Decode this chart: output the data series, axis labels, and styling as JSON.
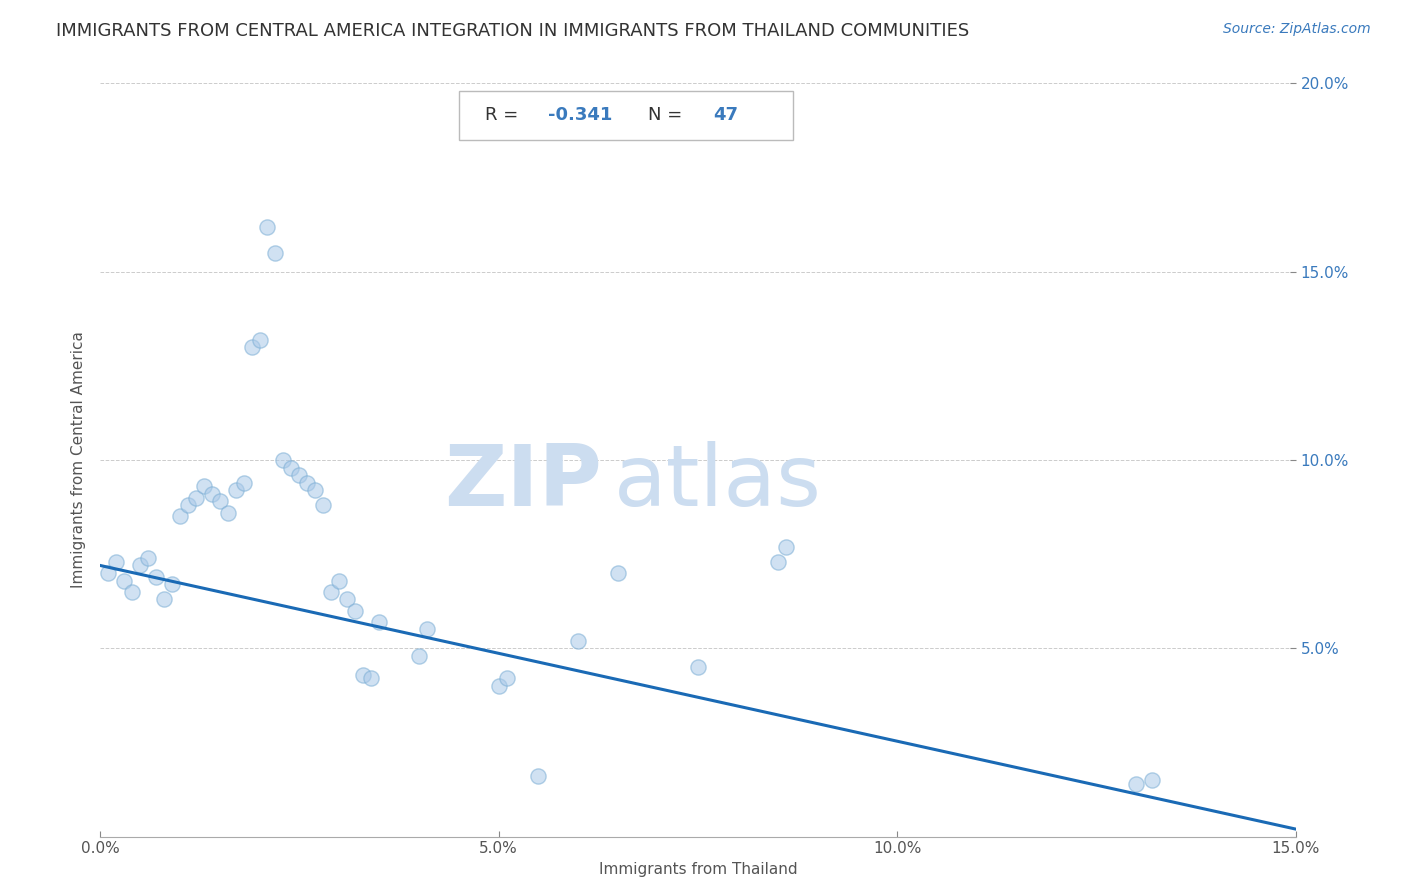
{
  "title": "IMMIGRANTS FROM CENTRAL AMERICA INTEGRATION IN IMMIGRANTS FROM THAILAND COMMUNITIES",
  "source": "Source: ZipAtlas.com",
  "xlabel": "Immigrants from Thailand",
  "ylabel": "Immigrants from Central America",
  "R": -0.341,
  "N": 47,
  "xlim": [
    0.0,
    0.15
  ],
  "ylim": [
    0.0,
    0.2
  ],
  "xticks": [
    0.0,
    0.05,
    0.1,
    0.15
  ],
  "yticks": [
    0.0,
    0.05,
    0.1,
    0.15,
    0.2
  ],
  "xtick_labels": [
    "0.0%",
    "5.0%",
    "10.0%",
    "15.0%"
  ],
  "ytick_labels": [
    "",
    "5.0%",
    "10.0%",
    "15.0%",
    "20.0%"
  ],
  "scatter_color": "#aac9e8",
  "line_color": "#1a6ab5",
  "watermark_zip": "ZIP",
  "watermark_atlas": "atlas",
  "scatter_x": [
    0.001,
    0.002,
    0.003,
    0.004,
    0.005,
    0.006,
    0.007,
    0.008,
    0.009,
    0.01,
    0.011,
    0.012,
    0.013,
    0.014,
    0.015,
    0.016,
    0.017,
    0.018,
    0.019,
    0.02,
    0.021,
    0.022,
    0.023,
    0.024,
    0.025,
    0.026,
    0.027,
    0.028,
    0.029,
    0.03,
    0.031,
    0.032,
    0.033,
    0.034,
    0.035,
    0.04,
    0.041,
    0.05,
    0.051,
    0.055,
    0.06,
    0.065,
    0.075,
    0.085,
    0.086,
    0.13,
    0.132
  ],
  "scatter_y": [
    0.07,
    0.073,
    0.068,
    0.065,
    0.072,
    0.074,
    0.069,
    0.063,
    0.067,
    0.085,
    0.088,
    0.09,
    0.093,
    0.091,
    0.089,
    0.086,
    0.092,
    0.094,
    0.13,
    0.132,
    0.162,
    0.155,
    0.1,
    0.098,
    0.096,
    0.094,
    0.092,
    0.088,
    0.065,
    0.068,
    0.063,
    0.06,
    0.043,
    0.042,
    0.057,
    0.048,
    0.055,
    0.04,
    0.042,
    0.016,
    0.052,
    0.07,
    0.045,
    0.073,
    0.077,
    0.014,
    0.015
  ],
  "line_x": [
    0.0,
    0.15
  ],
  "line_y_start": 0.072,
  "line_y_end": 0.002,
  "scatter_size": 120,
  "scatter_alpha": 0.55,
  "scatter_edge_color": "#7aadd4",
  "scatter_edge_width": 1.0,
  "title_fontsize": 13,
  "label_fontsize": 11,
  "tick_fontsize": 11,
  "source_fontsize": 10,
  "watermark_color": "#ccddf0",
  "watermark_fontsize_zip": 62,
  "watermark_fontsize_atlas": 62,
  "annotation_border_color": "#cccccc"
}
